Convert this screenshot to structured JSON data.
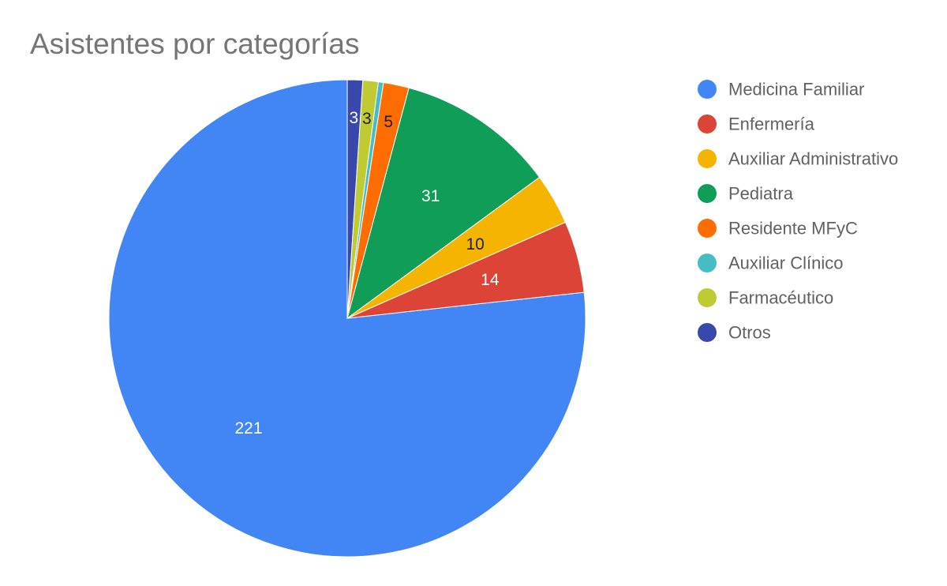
{
  "chart_data": {
    "type": "pie",
    "title": "Asistentes por categorías",
    "legend_position": "right",
    "slices": [
      {
        "name": "Medicina Familiar",
        "value": 221,
        "color": "#4285f4",
        "label": "221",
        "label_color": "#ffffff"
      },
      {
        "name": "Enfermería",
        "value": 14,
        "color": "#db4437",
        "label": "14",
        "label_color": "#ffffff"
      },
      {
        "name": "Auxiliar Administrativo",
        "value": 10,
        "color": "#f4b400",
        "label": "10",
        "label_color": "#212121"
      },
      {
        "name": "Pediatra",
        "value": 31,
        "color": "#0f9d58",
        "label": "31",
        "label_color": "#ffffff"
      },
      {
        "name": "Residente MFyC",
        "value": 5,
        "color": "#ff6d01",
        "label": "5",
        "label_color": "#212121"
      },
      {
        "name": "Auxiliar Clínico",
        "value": 1,
        "color": "#46bdc6",
        "label": "",
        "label_color": "#212121"
      },
      {
        "name": "Farmacéutico",
        "value": 3,
        "color": "#c0ca33",
        "label": "3",
        "label_color": "#212121"
      },
      {
        "name": "Otros",
        "value": 3,
        "color": "#3949ab",
        "label": "3",
        "label_color": "#ffffff"
      }
    ]
  }
}
